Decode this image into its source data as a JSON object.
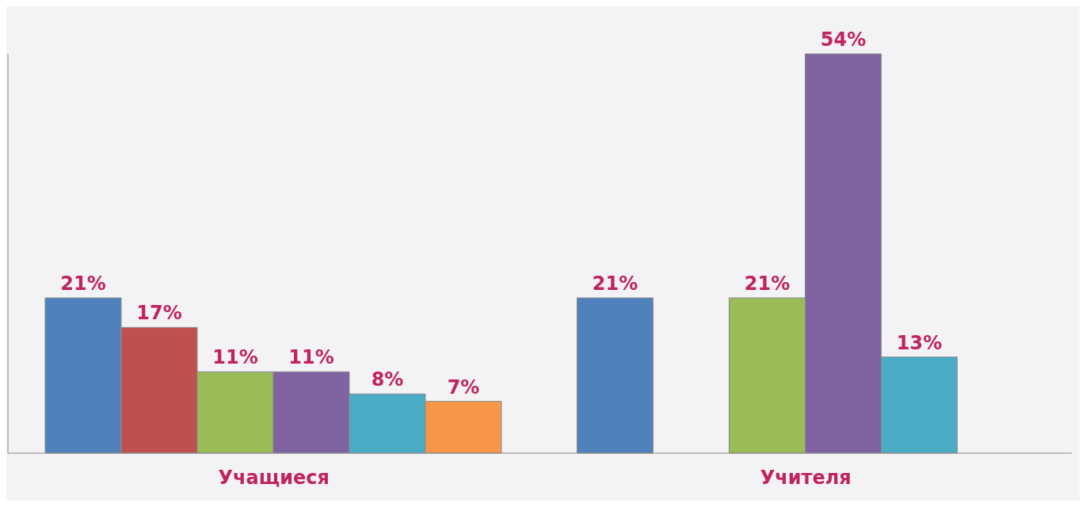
{
  "chart_data": {
    "type": "bar",
    "categories": [
      "Учащиеся",
      "Учителя"
    ],
    "series": [
      {
        "color": "#4f81bd",
        "values": [
          21,
          21
        ],
        "value_labels": [
          "21%",
          "21%"
        ]
      },
      {
        "color": "#c0504d",
        "values": [
          17,
          null
        ],
        "value_labels": [
          "17%",
          null
        ]
      },
      {
        "color": "#9bbb59",
        "values": [
          11,
          21
        ],
        "value_labels": [
          "11%",
          "21%"
        ]
      },
      {
        "color": "#8064a2",
        "values": [
          11,
          54
        ],
        "value_labels": [
          "11%",
          "54%"
        ]
      },
      {
        "color": "#4bacc6",
        "values": [
          8,
          13
        ],
        "value_labels": [
          "8%",
          "13%"
        ]
      },
      {
        "color": "#f79646",
        "values": [
          7,
          null
        ],
        "value_labels": [
          "7%",
          null
        ]
      }
    ],
    "legend": false,
    "grid": false
  }
}
